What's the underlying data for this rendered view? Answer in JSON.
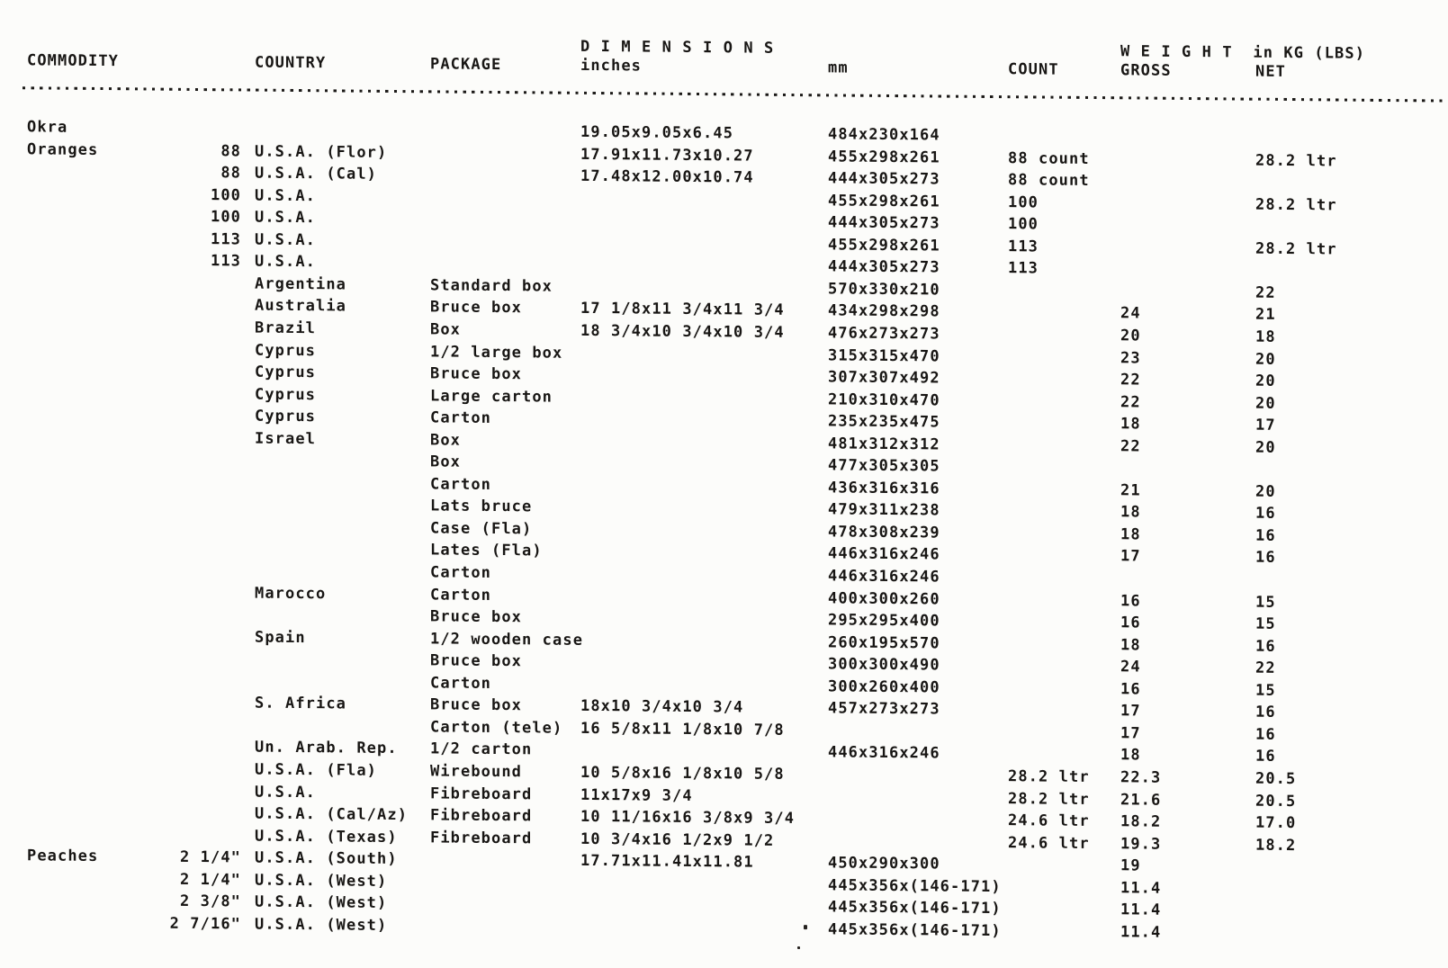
{
  "header": {
    "dimensions_label": "D I M E N S I O N S",
    "weight_label": "W E I G H T  in KG (LBS)",
    "columns": {
      "commodity": "COMMODITY",
      "country": "COUNTRY",
      "package": "PACKAGE",
      "inches": "inches",
      "mm": "mm",
      "count": "COUNT",
      "gross": "GROSS",
      "net": "NET"
    }
  },
  "rows": [
    {
      "commodity": "Okra",
      "size": "",
      "country": "",
      "package": "",
      "inches": "19.05x9.05x6.45",
      "mm": "484x230x164",
      "count": "",
      "gross": "",
      "net": ""
    },
    {
      "commodity": "Oranges",
      "size": "88",
      "country": "U.S.A. (Flor)",
      "package": "",
      "inches": "17.91x11.73x10.27",
      "mm": "455x298x261",
      "count": "88 count",
      "gross": "",
      "net": "28.2 ltr"
    },
    {
      "commodity": "",
      "size": "88",
      "country": "U.S.A. (Cal)",
      "package": "",
      "inches": "17.48x12.00x10.74",
      "mm": "444x305x273",
      "count": "88 count",
      "gross": "",
      "net": ""
    },
    {
      "commodity": "",
      "size": "100",
      "country": "U.S.A.",
      "package": "",
      "inches": "",
      "mm": "455x298x261",
      "count": "100",
      "gross": "",
      "net": "28.2 ltr"
    },
    {
      "commodity": "",
      "size": "100",
      "country": "U.S.A.",
      "package": "",
      "inches": "",
      "mm": "444x305x273",
      "count": "100",
      "gross": "",
      "net": ""
    },
    {
      "commodity": "",
      "size": "113",
      "country": "U.S.A.",
      "package": "",
      "inches": "",
      "mm": "455x298x261",
      "count": "113",
      "gross": "",
      "net": "28.2 ltr"
    },
    {
      "commodity": "",
      "size": "113",
      "country": "U.S.A.",
      "package": "",
      "inches": "",
      "mm": "444x305x273",
      "count": "113",
      "gross": "",
      "net": ""
    },
    {
      "commodity": "",
      "size": "",
      "country": "Argentina",
      "package": "Standard box",
      "inches": "",
      "mm": "570x330x210",
      "count": "",
      "gross": "",
      "net": "22"
    },
    {
      "commodity": "",
      "size": "",
      "country": "Australia",
      "package": "Bruce box",
      "inches": "17 1/8x11 3/4x11 3/4",
      "mm": "434x298x298",
      "count": "",
      "gross": "24",
      "net": "21"
    },
    {
      "commodity": "",
      "size": "",
      "country": "Brazil",
      "package": "Box",
      "inches": "18 3/4x10 3/4x10 3/4",
      "mm": "476x273x273",
      "count": "",
      "gross": "20",
      "net": "18"
    },
    {
      "commodity": "",
      "size": "",
      "country": "Cyprus",
      "package": "1/2 large box",
      "inches": "",
      "mm": "315x315x470",
      "count": "",
      "gross": "23",
      "net": "20"
    },
    {
      "commodity": "",
      "size": "",
      "country": "Cyprus",
      "package": "Bruce box",
      "inches": "",
      "mm": "307x307x492",
      "count": "",
      "gross": "22",
      "net": "20"
    },
    {
      "commodity": "",
      "size": "",
      "country": "Cyprus",
      "package": "Large carton",
      "inches": "",
      "mm": "210x310x470",
      "count": "",
      "gross": "22",
      "net": "20"
    },
    {
      "commodity": "",
      "size": "",
      "country": "Cyprus",
      "package": "Carton",
      "inches": "",
      "mm": "235x235x475",
      "count": "",
      "gross": "18",
      "net": "17"
    },
    {
      "commodity": "",
      "size": "",
      "country": "Israel",
      "package": "Box",
      "inches": "",
      "mm": "481x312x312",
      "count": "",
      "gross": "22",
      "net": "20"
    },
    {
      "commodity": "",
      "size": "",
      "country": "",
      "package": "Box",
      "inches": "",
      "mm": "477x305x305",
      "count": "",
      "gross": "",
      "net": ""
    },
    {
      "commodity": "",
      "size": "",
      "country": "",
      "package": "Carton",
      "inches": "",
      "mm": "436x316x316",
      "count": "",
      "gross": "21",
      "net": "20"
    },
    {
      "commodity": "",
      "size": "",
      "country": "",
      "package": "Lats bruce",
      "inches": "",
      "mm": "479x311x238",
      "count": "",
      "gross": "18",
      "net": "16"
    },
    {
      "commodity": "",
      "size": "",
      "country": "",
      "package": "Case (Fla)",
      "inches": "",
      "mm": "478x308x239",
      "count": "",
      "gross": "18",
      "net": "16"
    },
    {
      "commodity": "",
      "size": "",
      "country": "",
      "package": "Lates (Fla)",
      "inches": "",
      "mm": "446x316x246",
      "count": "",
      "gross": "17",
      "net": "16"
    },
    {
      "commodity": "",
      "size": "",
      "country": "",
      "package": "Carton",
      "inches": "",
      "mm": "446x316x246",
      "count": "",
      "gross": "",
      "net": ""
    },
    {
      "commodity": "",
      "size": "",
      "country": "Marocco",
      "package": "Carton",
      "inches": "",
      "mm": "400x300x260",
      "count": "",
      "gross": "16",
      "net": "15"
    },
    {
      "commodity": "",
      "size": "",
      "country": "",
      "package": "Bruce box",
      "inches": "",
      "mm": "295x295x400",
      "count": "",
      "gross": "16",
      "net": "15"
    },
    {
      "commodity": "",
      "size": "",
      "country": "Spain",
      "package": "1/2 wooden case",
      "inches": "",
      "mm": "260x195x570",
      "count": "",
      "gross": "18",
      "net": "16"
    },
    {
      "commodity": "",
      "size": "",
      "country": "",
      "package": "Bruce box",
      "inches": "",
      "mm": "300x300x490",
      "count": "",
      "gross": "24",
      "net": "22"
    },
    {
      "commodity": "",
      "size": "",
      "country": "",
      "package": "Carton",
      "inches": "",
      "mm": "300x260x400",
      "count": "",
      "gross": "16",
      "net": "15"
    },
    {
      "commodity": "",
      "size": "",
      "country": "S. Africa",
      "package": "Bruce box",
      "inches": "18x10 3/4x10 3/4",
      "mm": "457x273x273",
      "count": "",
      "gross": "17",
      "net": "16"
    },
    {
      "commodity": "",
      "size": "",
      "country": "",
      "package": "Carton (tele)",
      "inches": "16 5/8x11 1/8x10 7/8",
      "mm": "",
      "count": "",
      "gross": "17",
      "net": "16"
    },
    {
      "commodity": "",
      "size": "",
      "country": "Un. Arab. Rep.",
      "package": "1/2 carton",
      "inches": "",
      "mm": "446x316x246",
      "count": "",
      "gross": "18",
      "net": "16"
    },
    {
      "commodity": "",
      "size": "",
      "country": "U.S.A. (Fla)",
      "package": "Wirebound",
      "inches": "10 5/8x16 1/8x10 5/8",
      "mm": "",
      "count": "28.2 ltr",
      "gross": "22.3",
      "net": "20.5"
    },
    {
      "commodity": "",
      "size": "",
      "country": "U.S.A.",
      "package": "Fibreboard",
      "inches": "11x17x9 3/4",
      "mm": "",
      "count": "28.2 ltr",
      "gross": "21.6",
      "net": "20.5"
    },
    {
      "commodity": "",
      "size": "",
      "country": "U.S.A. (Cal/Az)",
      "package": "Fibreboard",
      "inches": "10 11/16x16 3/8x9 3/4",
      "mm": "",
      "count": "24.6 ltr",
      "gross": "18.2",
      "net": "17.0"
    },
    {
      "commodity": "",
      "size": "",
      "country": "U.S.A. (Texas)",
      "package": "Fibreboard",
      "inches": "10 3/4x16 1/2x9 1/2",
      "mm": "",
      "count": "24.6 ltr",
      "gross": "19.3",
      "net": "18.2"
    },
    {
      "commodity": "Peaches",
      "size": "2 1/4\"",
      "country": "U.S.A. (South)",
      "package": "",
      "inches": "17.71x11.41x11.81",
      "mm": "450x290x300",
      "count": "",
      "gross": "19",
      "net": ""
    },
    {
      "commodity": "",
      "size": "2 1/4\"",
      "country": "U.S.A. (West)",
      "package": "",
      "inches": "",
      "mm": "445x356x(146-171)",
      "count": "",
      "gross": "11.4",
      "net": ""
    },
    {
      "commodity": "",
      "size": "2 3/8\"",
      "country": "U.S.A. (West)",
      "package": "",
      "inches": "",
      "mm": "445x356x(146-171)",
      "count": "",
      "gross": "11.4",
      "net": ""
    },
    {
      "commodity": "",
      "size": "2 7/16\"",
      "country": "U.S.A. (West)",
      "package": "",
      "inches": "",
      "mm": "445x356x(146-171)",
      "count": "",
      "gross": "11.4",
      "net": ""
    }
  ]
}
